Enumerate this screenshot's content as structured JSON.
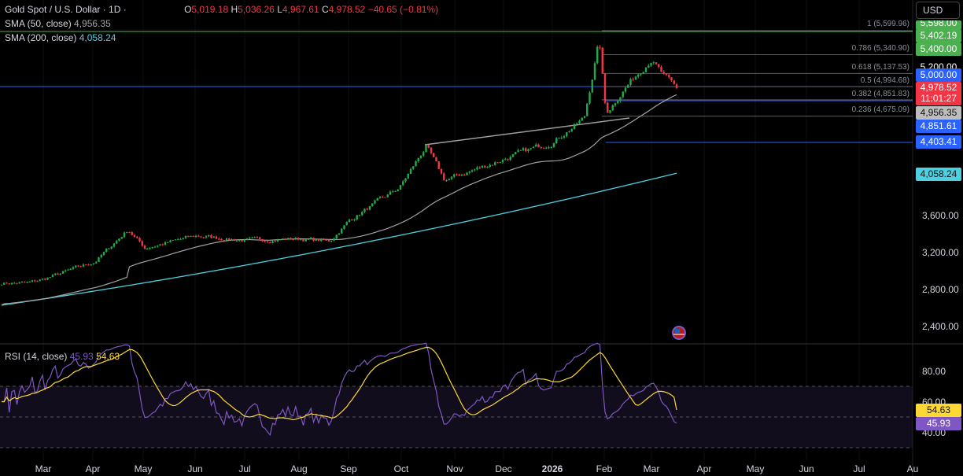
{
  "header": {
    "symbol": "Gold Spot / U.S. Dollar · 1D ·",
    "open_label": "O",
    "open": "5,019.18",
    "high_label": "H",
    "high": "5,036.26",
    "low_label": "L",
    "low": "4,967.61",
    "close_label": "C",
    "close": "4,978.52",
    "change": "−40.65 (−0.81%)"
  },
  "sma50": {
    "label": "SMA (50, close)",
    "value": "4,956.35",
    "color": "#a3a3a3"
  },
  "sma200": {
    "label": "SMA (200, close)",
    "value": "4,058.24",
    "color": "#4dd0e1"
  },
  "currency_button": "USD",
  "rsi": {
    "label": "RSI (14, close)",
    "value": "45.93",
    "ma_value": "54.63",
    "rsi_color": "#7e57c2",
    "ma_color": "#fdd835"
  },
  "fib_levels": [
    {
      "label": "1 (5,599.96)"
    },
    {
      "label": "0.786 (5,340.90)"
    },
    {
      "label": "0.618 (5,137.53)"
    },
    {
      "label": "0.5 (4,994.68)"
    },
    {
      "label": "0.382 (4,851.83)"
    },
    {
      "label": "0.236 (4,675.09)"
    }
  ],
  "price_labels": {
    "p5598": "5,598.00",
    "p5402": "5,402.19",
    "p5400": "5,400.00",
    "p5200": "5,200.00",
    "p5000": "5,000.00",
    "last": "4,978.52",
    "countdown": "11:01:27",
    "sma50": "4,956.35",
    "p4851": "4,851.61",
    "p4403": "4,403.41",
    "sma200": "4,058.24"
  },
  "price_axis": [
    "3,600.00",
    "3,200.00",
    "2,800.00",
    "2,400.00"
  ],
  "rsi_axis": [
    "80.00",
    "60.00",
    "40.00"
  ],
  "time_axis": [
    "Mar",
    "Apr",
    "May",
    "Jun",
    "Jul",
    "Aug",
    "Sep",
    "Oct",
    "Nov",
    "Dec",
    "2026",
    "Feb",
    "Mar",
    "Apr",
    "May",
    "Jun",
    "Jul",
    "Au"
  ],
  "colors": {
    "up": "#26a69a",
    "up_candle": "#22ab4a",
    "down": "#f23645",
    "fib_line": "#5d606b",
    "blue_line": "#2962ff",
    "green_line": "#4caf50"
  },
  "chart_data": {
    "type": "candlestick",
    "title": "Gold Spot / U.S. Dollar · 1D",
    "ylim": [
      2300,
      5700
    ],
    "approx_closes": [
      {
        "date": "2025-02-20",
        "close": 2870
      },
      {
        "date": "2025-03-01",
        "close": 2910
      },
      {
        "date": "2025-04-01",
        "close": 3100
      },
      {
        "date": "2025-04-21",
        "close": 3450
      },
      {
        "date": "2025-05-01",
        "close": 3250
      },
      {
        "date": "2025-06-01",
        "close": 3380
      },
      {
        "date": "2025-07-01",
        "close": 3330
      },
      {
        "date": "2025-08-01",
        "close": 3350
      },
      {
        "date": "2025-08-20",
        "close": 3320
      },
      {
        "date": "2025-09-01",
        "close": 3550
      },
      {
        "date": "2025-10-01",
        "close": 3900
      },
      {
        "date": "2025-10-17",
        "close": 4350
      },
      {
        "date": "2025-10-28",
        "close": 3980
      },
      {
        "date": "2025-12-01",
        "close": 4200
      },
      {
        "date": "2026-01-01",
        "close": 4400
      },
      {
        "date": "2026-01-20",
        "close": 4650
      },
      {
        "date": "2026-01-29",
        "close": 5500
      },
      {
        "date": "2026-02-02",
        "close": 4700
      },
      {
        "date": "2026-02-12",
        "close": 4950
      },
      {
        "date": "2026-03-01",
        "close": 5300
      },
      {
        "date": "2026-03-09",
        "close": 5100
      },
      {
        "date": "2026-03-16",
        "close": 4978.52
      }
    ],
    "sma200_range": [
      2630,
      4058.24
    ],
    "last": {
      "open": 5019.18,
      "high": 5036.26,
      "low": 4967.61,
      "close": 4978.52
    }
  }
}
